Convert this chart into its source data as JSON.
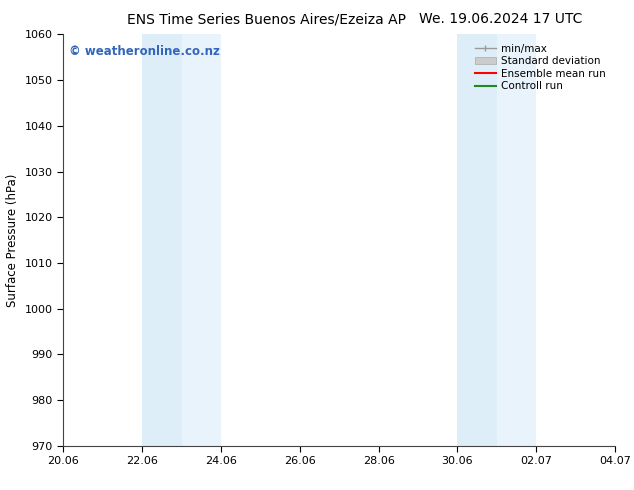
{
  "title_left": "ENS Time Series Buenos Aires/Ezeiza AP",
  "title_right": "We. 19.06.2024 17 UTC",
  "ylabel": "Surface Pressure (hPa)",
  "ylim": [
    970,
    1060
  ],
  "yticks": [
    970,
    980,
    990,
    1000,
    1010,
    1020,
    1030,
    1040,
    1050,
    1060
  ],
  "xtick_labels": [
    "20.06",
    "22.06",
    "24.06",
    "26.06",
    "28.06",
    "30.06",
    "02.07",
    "04.07"
  ],
  "xtick_positions": [
    0,
    2,
    4,
    6,
    8,
    10,
    12,
    14
  ],
  "x_total_days": 14,
  "shaded_regions": [
    {
      "start": 2,
      "end": 3,
      "color": "#ddeef8"
    },
    {
      "start": 3,
      "end": 4,
      "color": "#e8f3fb"
    },
    {
      "start": 10,
      "end": 11,
      "color": "#ddeef8"
    },
    {
      "start": 11,
      "end": 12,
      "color": "#e8f3fb"
    }
  ],
  "watermark_text": "© weatheronline.co.nz",
  "watermark_color": "#3366bb",
  "background_color": "#ffffff",
  "plot_bg_color": "#ffffff",
  "legend_entries": [
    {
      "label": "min/max",
      "color": "#aaaaaa",
      "style": "minmax"
    },
    {
      "label": "Standard deviation",
      "color": "#cccccc",
      "style": "patch"
    },
    {
      "label": "Ensemble mean run",
      "color": "#ff0000",
      "style": "line"
    },
    {
      "label": "Controll run",
      "color": "#228822",
      "style": "line"
    }
  ],
  "title_fontsize": 10,
  "axis_fontsize": 8.5,
  "tick_fontsize": 8,
  "legend_fontsize": 7.5
}
